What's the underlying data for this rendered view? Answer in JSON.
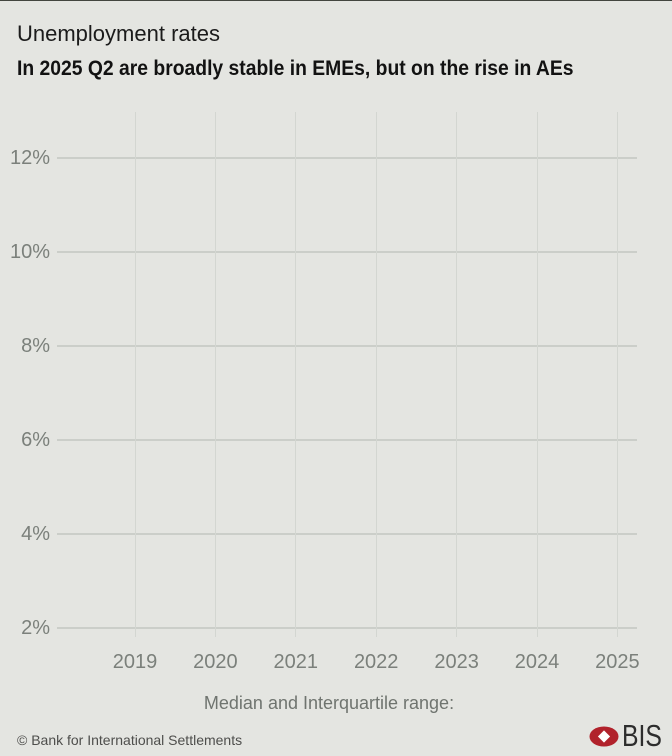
{
  "header": {
    "title": "Unemployment rates",
    "subtitle": "In 2025 Q2 are broadly stable in EMEs, but on the rise in AEs"
  },
  "chart_data": {
    "type": "line",
    "title": "Unemployment rates",
    "subtitle": "In 2025 Q2 are broadly stable in EMEs, but on the rise in AEs",
    "x": {
      "ticks": [
        2019,
        2020,
        2021,
        2022,
        2023,
        2024,
        2025
      ]
    },
    "y": {
      "ticks": [
        12,
        10,
        8,
        6,
        4,
        2
      ],
      "tick_suffix": "%",
      "ylim": [
        1.8,
        13.1
      ]
    },
    "grid": true,
    "legend": {
      "label": "Median and Interquartile range:",
      "position": "bottom-center"
    },
    "series": []
  },
  "footer": {
    "copyright": "© Bank for International Settlements",
    "logo_text": "BIS",
    "logo_icon": "bis-red-ellipse-white-diamond"
  },
  "colors": {
    "background": "#e4e5e1",
    "top_border": "#42453f",
    "grid_horizontal": "#cbcec9",
    "grid_vertical": "#d3d6d1",
    "tick_label": "#7b807b",
    "title": "#1b1b1b",
    "subtitle": "#121212",
    "legend_label": "#6f746f",
    "footer_text": "#4e4e4c",
    "bis_red": "#b1222b",
    "bis_text": "#2d2d2d"
  }
}
